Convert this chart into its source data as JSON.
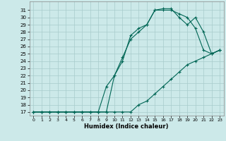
{
  "xlabel": "Humidex (Indice chaleur)",
  "bg_color": "#cce9e9",
  "grid_color": "#a8cccc",
  "line_color": "#006655",
  "xlim": [
    -0.5,
    23.5
  ],
  "ylim": [
    16.5,
    32.2
  ],
  "xticks": [
    0,
    1,
    2,
    3,
    4,
    5,
    6,
    7,
    8,
    9,
    10,
    11,
    12,
    13,
    14,
    15,
    16,
    17,
    18,
    19,
    20,
    21,
    22,
    23
  ],
  "yticks": [
    17,
    18,
    19,
    20,
    21,
    22,
    23,
    24,
    25,
    26,
    27,
    28,
    29,
    30,
    31
  ],
  "line1_x": [
    0,
    1,
    2,
    3,
    4,
    5,
    6,
    7,
    8,
    9,
    10,
    11,
    12,
    13,
    14,
    15,
    16,
    17,
    18,
    19,
    20,
    21,
    22,
    23
  ],
  "line1_y": [
    17,
    17,
    17,
    17,
    17,
    17,
    17,
    17,
    17,
    17,
    17,
    17,
    17,
    18,
    18.5,
    19.5,
    20.5,
    21.5,
    22.5,
    23.5,
    24,
    24.5,
    25,
    25.5
  ],
  "line2_x": [
    0,
    1,
    2,
    3,
    4,
    5,
    6,
    7,
    8,
    9,
    10,
    11,
    12,
    13,
    14,
    15,
    16,
    17,
    18,
    19,
    20,
    21,
    22,
    23
  ],
  "line2_y": [
    17,
    17,
    17,
    17,
    17,
    17,
    17,
    17,
    17,
    17,
    22,
    24,
    27.5,
    28.5,
    29,
    31,
    31,
    31,
    30.5,
    30,
    28.5,
    25.5,
    25,
    25.5
  ],
  "line3_x": [
    0,
    1,
    2,
    3,
    4,
    5,
    6,
    7,
    8,
    9,
    10,
    11,
    12,
    13,
    14,
    15,
    16,
    17,
    18,
    19,
    20,
    21,
    22,
    23
  ],
  "line3_y": [
    17,
    17,
    17,
    17,
    17,
    17,
    17,
    17,
    17,
    20.5,
    22,
    24.5,
    27,
    28,
    29,
    31,
    31.2,
    31.2,
    30,
    29,
    30,
    28,
    25,
    25.5
  ]
}
